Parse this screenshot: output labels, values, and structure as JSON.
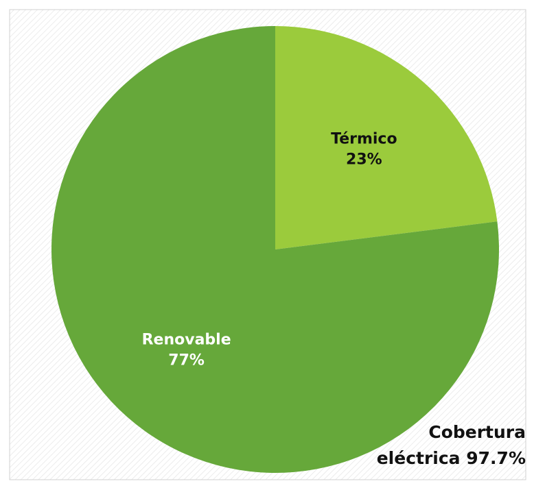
{
  "chart_data": {
    "type": "pie",
    "categories": [
      "Térmico",
      "Renovable"
    ],
    "values": [
      23,
      77
    ],
    "value_labels": [
      "23%",
      "77%"
    ],
    "colors": [
      "#9bcb3c",
      "#66a83a"
    ],
    "label_colors": [
      "#111111",
      "#ffffff"
    ],
    "start_angle": 0,
    "direction": "clockwise",
    "annotation": [
      "Cobertura",
      "eléctrica 97.7%"
    ]
  }
}
